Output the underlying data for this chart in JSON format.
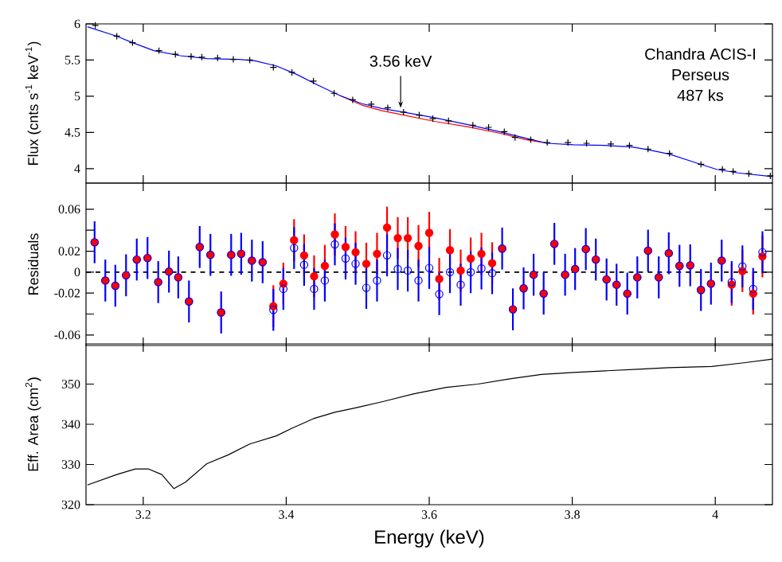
{
  "chart_data": [
    {
      "type": "line",
      "ylabel": "Flux (cnts s$^{-1}$ keV$^{-1}$)",
      "xlim": [
        3.12,
        4.08
      ],
      "xticks": [
        3.2,
        3.4,
        3.6,
        3.8,
        4
      ],
      "ylim": [
        3.8,
        6
      ],
      "yticks": [
        4,
        4.5,
        5,
        5.5,
        6
      ],
      "tick_labels": "y",
      "annotations": [
        {
          "text": "3.56 keV",
          "x": 3.56,
          "y": 4.78
        },
        "Chandra ACIS-I",
        "Perseus",
        "487 ks"
      ],
      "series": [
        {
          "type": "scatter",
          "marker": "cross",
          "color": "#000000",
          "x": [
            3.133,
            3.163,
            3.185,
            3.222,
            3.245,
            3.267,
            3.282,
            3.304,
            3.326,
            3.349,
            3.382,
            3.408,
            3.438,
            3.467,
            3.493,
            3.519,
            3.542,
            3.564,
            3.586,
            3.605,
            3.627,
            3.661,
            3.683,
            3.705,
            3.72,
            3.742,
            3.765,
            3.794,
            3.82,
            3.854,
            3.88,
            3.906,
            3.936,
            3.98,
            4.01,
            4.025,
            4.047,
            4.077
          ],
          "values": [
            5.98,
            5.83,
            5.74,
            5.63,
            5.58,
            5.55,
            5.54,
            5.53,
            5.51,
            5.5,
            5.4,
            5.33,
            5.21,
            5.04,
            4.95,
            4.89,
            4.84,
            4.78,
            4.74,
            4.69,
            4.66,
            4.6,
            4.57,
            4.51,
            4.43,
            4.4,
            4.36,
            4.36,
            4.35,
            4.34,
            4.32,
            4.27,
            4.21,
            4.06,
            3.99,
            3.96,
            3.93,
            3.9
          ]
        },
        {
          "type": "line",
          "color": "#ff0000",
          "x": [
            3.475,
            3.505,
            3.534,
            3.564,
            3.609,
            3.653,
            3.698,
            3.735,
            3.765
          ],
          "values": [
            5.01,
            4.88,
            4.8,
            4.74,
            4.65,
            4.58,
            4.49,
            4.4,
            4.35
          ]
        },
        {
          "type": "line",
          "color": "#0000ff",
          "x": [
            3.122,
            3.163,
            3.185,
            3.215,
            3.252,
            3.289,
            3.334,
            3.356,
            3.386,
            3.415,
            3.445,
            3.475,
            3.505,
            3.534,
            3.564,
            3.609,
            3.653,
            3.698,
            3.735,
            3.765,
            3.802,
            3.846,
            3.884,
            3.906,
            3.936,
            3.973,
            4.002,
            4.032,
            4.08
          ],
          "values": [
            5.96,
            5.83,
            5.74,
            5.63,
            5.56,
            5.52,
            5.51,
            5.49,
            5.42,
            5.3,
            5.15,
            5.01,
            4.9,
            4.83,
            4.78,
            4.7,
            4.61,
            4.51,
            4.42,
            4.35,
            4.33,
            4.32,
            4.3,
            4.26,
            4.2,
            4.08,
            3.99,
            3.94,
            3.89
          ]
        }
      ]
    },
    {
      "type": "scatter",
      "ylabel": "Residuals",
      "xlim": [
        3.12,
        4.08
      ],
      "xticks": [
        3.2,
        3.4,
        3.6,
        3.8,
        4
      ],
      "ylim": [
        -0.07,
        0.085
      ],
      "yticks": [
        -0.06,
        {
          "value": -0.04,
          "label": null
        },
        -0.02,
        0,
        0.02,
        {
          "value": 0.04,
          "label": null
        },
        0.06
      ],
      "tick_labels": "y",
      "ref_lines": [
        {
          "axis": "y",
          "value": 0,
          "line_style": "dashed",
          "color": "#000000"
        }
      ],
      "x": [
        3.132,
        3.147,
        3.161,
        3.176,
        3.191,
        3.206,
        3.221,
        3.236,
        3.249,
        3.264,
        3.279,
        3.294,
        3.309,
        3.323,
        3.337,
        3.352,
        3.367,
        3.382,
        3.396,
        3.411,
        3.425,
        3.439,
        3.454,
        3.468,
        3.483,
        3.497,
        3.512,
        3.527,
        3.541,
        3.556,
        3.57,
        3.585,
        3.6,
        3.614,
        3.629,
        3.644,
        3.658,
        3.673,
        3.688,
        3.702,
        3.717,
        3.732,
        3.746,
        3.76,
        3.775,
        3.79,
        3.804,
        3.819,
        3.833,
        3.848,
        3.862,
        3.877,
        3.891,
        3.906,
        3.921,
        3.935,
        3.95,
        3.965,
        3.98,
        3.994,
        4.009,
        4.023,
        4.038,
        4.053,
        4.066
      ],
      "series": [
        {
          "marker": "circle",
          "color": "#ff0000",
          "values": [
            0.0285,
            -0.008,
            -0.013,
            -0.003,
            0.012,
            0.0135,
            -0.0095,
            0.0005,
            -0.005,
            -0.028,
            0.024,
            0.0165,
            -0.0385,
            0.0165,
            0.0175,
            0.011,
            0.0095,
            -0.0325,
            -0.011,
            0.0305,
            0.016,
            -0.004,
            0.006,
            0.036,
            0.024,
            0.019,
            0.008,
            0.0175,
            0.0425,
            0.0325,
            0.0325,
            0.025,
            0.0375,
            -0.0065,
            0.021,
            0.0015,
            0.013,
            0.0175,
            0.0085,
            0.0225,
            -0.0355,
            -0.0155,
            -0.0025,
            -0.0205,
            0.027,
            -0.0025,
            0.003,
            0.022,
            0.012,
            -0.007,
            -0.012,
            -0.0205,
            -0.005,
            0.0205,
            -0.005,
            0.018,
            0.006,
            0.0065,
            -0.017,
            -0.011,
            0.011,
            -0.012,
            0.001,
            -0.0205,
            0.015
          ],
          "errors": [
            null,
            null,
            null,
            null,
            null,
            null,
            null,
            null,
            null,
            null,
            null,
            null,
            null,
            null,
            null,
            null,
            null,
            0.02,
            0.02,
            0.02,
            0.02,
            0.02,
            0.02,
            0.02,
            0.02,
            0.02,
            0.02,
            0.02,
            0.02,
            0.02,
            0.02,
            0.02,
            0.02,
            0.02,
            0.02,
            0.02,
            0.02,
            0.02,
            0.02,
            null,
            null,
            null,
            null,
            null,
            null,
            null,
            null,
            null,
            null,
            null,
            null,
            null,
            null,
            null,
            null,
            null,
            null,
            null,
            null,
            null,
            null,
            0.02,
            0.02,
            0.02,
            0.02
          ]
        },
        {
          "marker": "circle",
          "color": "#0000ff",
          "values": [
            0.0285,
            -0.008,
            -0.013,
            -0.003,
            0.012,
            0.0135,
            -0.0095,
            0.0005,
            -0.005,
            -0.028,
            0.024,
            0.0165,
            -0.0385,
            0.0165,
            0.0175,
            0.011,
            0.0095,
            -0.036,
            -0.016,
            0.023,
            0.007,
            -0.016,
            -0.008,
            0.0265,
            0.013,
            0.008,
            -0.015,
            -0.008,
            0.016,
            0.003,
            0.0015,
            -0.008,
            0.004,
            -0.021,
            0,
            -0.012,
            0,
            0.0035,
            -0.001,
            0.0225,
            -0.0355,
            -0.0155,
            -0.0025,
            -0.0205,
            0.027,
            -0.0025,
            0.003,
            0.022,
            0.012,
            -0.007,
            -0.012,
            -0.0205,
            -0.005,
            0.0205,
            -0.005,
            0.018,
            0.006,
            0.0065,
            -0.017,
            -0.011,
            0.011,
            -0.0095,
            0.0055,
            -0.016,
            0.019
          ],
          "errors": [
            0.02,
            0.02,
            0.02,
            0.02,
            0.02,
            0.02,
            0.02,
            0.02,
            0.02,
            0.02,
            0.02,
            0.02,
            0.02,
            0.02,
            0.02,
            0.02,
            0.02,
            0.02,
            0.02,
            0.02,
            0.02,
            0.02,
            0.02,
            0.02,
            0.02,
            0.02,
            0.02,
            0.02,
            0.02,
            0.02,
            0.02,
            0.02,
            0.02,
            0.02,
            0.02,
            0.02,
            0.02,
            0.02,
            0.02,
            0.02,
            0.02,
            0.02,
            0.02,
            0.02,
            0.02,
            0.02,
            0.02,
            0.02,
            0.02,
            0.02,
            0.02,
            0.02,
            0.02,
            0.02,
            0.02,
            0.02,
            0.02,
            0.02,
            0.02,
            0.02,
            0.02,
            0.02,
            0.02,
            0.02,
            0.02
          ]
        }
      ]
    },
    {
      "type": "line",
      "ylabel": "Eff. Area (cm$^{2}$)",
      "xlabel": "Energy (keV)",
      "xlim": [
        3.12,
        4.08
      ],
      "xticks": [
        3.2,
        3.4,
        3.6,
        3.8,
        4
      ],
      "ylim": [
        320,
        360
      ],
      "yticks": [
        320,
        330,
        340,
        350
      ],
      "series": [
        {
          "color": "#000000",
          "x": [
            3.122,
            3.163,
            3.189,
            3.207,
            3.226,
            3.243,
            3.259,
            3.289,
            3.319,
            3.349,
            3.386,
            3.408,
            3.438,
            3.468,
            3.497,
            3.534,
            3.579,
            3.624,
            3.668,
            3.713,
            3.757,
            3.802,
            3.846,
            3.891,
            3.935,
            3.995,
            4.04,
            4.08
          ],
          "values": [
            324.9,
            327.5,
            328.9,
            328.9,
            327.5,
            324.0,
            325.6,
            330.2,
            332.4,
            335.1,
            337.1,
            339.0,
            341.4,
            343.0,
            344.1,
            345.6,
            347.6,
            349.2,
            350.0,
            351.3,
            352.4,
            352.9,
            353.3,
            353.7,
            354.1,
            354.4,
            355.3,
            356.2
          ]
        }
      ]
    }
  ]
}
